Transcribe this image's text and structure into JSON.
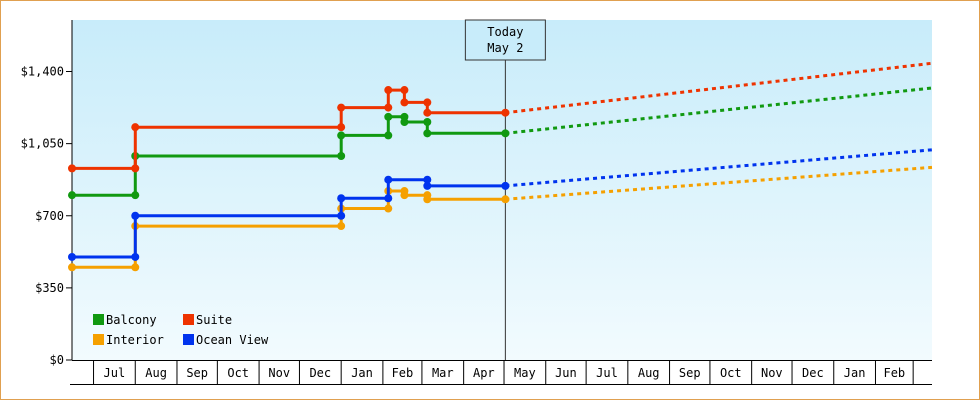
{
  "chart_data": {
    "type": "line",
    "subtype": "step",
    "title": "",
    "xlabel": "",
    "ylabel": "",
    "y_ticks": [
      "$0",
      "$350",
      "$700",
      "$1,050",
      "$1,400"
    ],
    "y_tick_values": [
      0,
      350,
      700,
      1050,
      1400
    ],
    "ylim": [
      0,
      1650
    ],
    "x_months": [
      "Jul",
      "Aug",
      "Sep",
      "Oct",
      "Nov",
      "Dec",
      "Jan",
      "Feb",
      "Mar",
      "Apr",
      "May",
      "Jun",
      "Jul",
      "Aug",
      "Sep",
      "Oct",
      "Nov",
      "Dec",
      "Jan",
      "Feb"
    ],
    "x_range": [
      "2023-06-15",
      "2025-03-15"
    ],
    "today": {
      "line1": "Today",
      "line2": "May 2",
      "date": "2024-05-02"
    },
    "legend": {
      "position": "bottom-left"
    },
    "grid": false,
    "series": [
      {
        "name": "Balcony",
        "color": "#119911",
        "points": [
          [
            "2023-06-15",
            800
          ],
          [
            "2023-08-01",
            800
          ],
          [
            "2023-08-01",
            990
          ],
          [
            "2024-01-01",
            990
          ],
          [
            "2024-01-01",
            1090
          ],
          [
            "2024-02-05",
            1090
          ],
          [
            "2024-02-05",
            1180
          ],
          [
            "2024-02-17",
            1180
          ],
          [
            "2024-02-17",
            1155
          ],
          [
            "2024-03-05",
            1155
          ],
          [
            "2024-03-05",
            1100
          ],
          [
            "2024-05-02",
            1100
          ]
        ],
        "forecast": [
          [
            "2024-05-02",
            1100
          ],
          [
            "2025-03-15",
            1320
          ]
        ]
      },
      {
        "name": "Suite",
        "color": "#ee3300",
        "points": [
          [
            "2023-06-15",
            930
          ],
          [
            "2023-08-01",
            930
          ],
          [
            "2023-08-01",
            1130
          ],
          [
            "2024-01-01",
            1130
          ],
          [
            "2024-01-01",
            1225
          ],
          [
            "2024-02-05",
            1225
          ],
          [
            "2024-02-05",
            1310
          ],
          [
            "2024-02-17",
            1310
          ],
          [
            "2024-02-17",
            1250
          ],
          [
            "2024-03-05",
            1250
          ],
          [
            "2024-03-05",
            1200
          ],
          [
            "2024-05-02",
            1200
          ]
        ],
        "forecast": [
          [
            "2024-05-02",
            1200
          ],
          [
            "2025-03-15",
            1440
          ]
        ]
      },
      {
        "name": "Interior",
        "color": "#f5a000",
        "points": [
          [
            "2023-06-15",
            450
          ],
          [
            "2023-08-01",
            450
          ],
          [
            "2023-08-01",
            650
          ],
          [
            "2024-01-01",
            650
          ],
          [
            "2024-01-01",
            735
          ],
          [
            "2024-02-05",
            735
          ],
          [
            "2024-02-05",
            820
          ],
          [
            "2024-02-17",
            820
          ],
          [
            "2024-02-17",
            800
          ],
          [
            "2024-03-05",
            800
          ],
          [
            "2024-03-05",
            780
          ],
          [
            "2024-05-02",
            780
          ]
        ],
        "forecast": [
          [
            "2024-05-02",
            780
          ],
          [
            "2025-03-15",
            935
          ]
        ]
      },
      {
        "name": "Ocean View",
        "color": "#0033ee",
        "points": [
          [
            "2023-06-15",
            500
          ],
          [
            "2023-08-01",
            500
          ],
          [
            "2023-08-01",
            700
          ],
          [
            "2024-01-01",
            700
          ],
          [
            "2024-01-01",
            785
          ],
          [
            "2024-02-05",
            785
          ],
          [
            "2024-02-05",
            875
          ],
          [
            "2024-03-05",
            875
          ],
          [
            "2024-03-05",
            845
          ],
          [
            "2024-05-02",
            845
          ]
        ],
        "forecast": [
          [
            "2024-05-02",
            845
          ],
          [
            "2025-03-15",
            1020
          ]
        ]
      }
    ]
  }
}
